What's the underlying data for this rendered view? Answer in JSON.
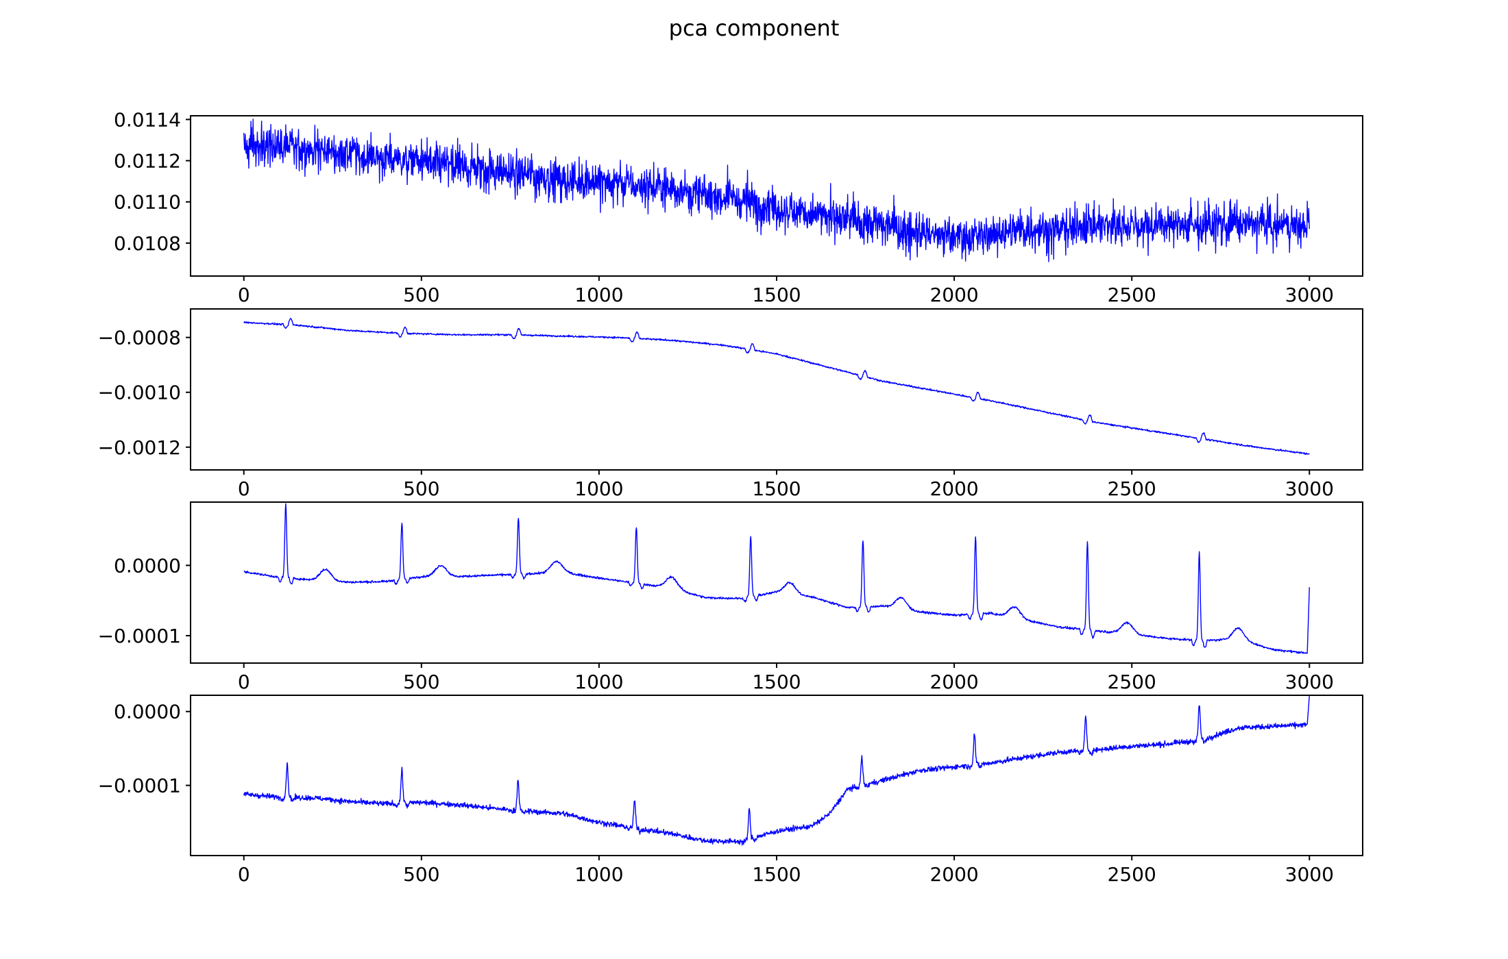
{
  "figure": {
    "title": "pca component"
  },
  "chart_data": [
    {
      "type": "line",
      "title": "",
      "xlabel": "",
      "ylabel": "",
      "xlim": [
        -150,
        3150
      ],
      "ylim": [
        0.01064,
        0.011418
      ],
      "xticks": [
        0,
        500,
        1000,
        1500,
        2000,
        2500,
        3000
      ],
      "xtick_labels": [
        "0",
        "500",
        "1000",
        "1500",
        "2000",
        "2500",
        "3000"
      ],
      "yticks": [
        0.0108,
        0.011,
        0.0112,
        0.0114
      ],
      "ytick_labels": [
        "0.0108",
        "0.0110",
        "0.0112",
        "0.0114"
      ],
      "series": [
        {
          "color": "#0000ff",
          "x": [
            0,
            100,
            200,
            300,
            400,
            500,
            600,
            700,
            800,
            900,
            1000,
            1100,
            1200,
            1300,
            1400,
            1500,
            1600,
            1700,
            1800,
            1900,
            2000,
            2100,
            2200,
            2300,
            2400,
            2500,
            2600,
            2700,
            2800,
            2900,
            3000
          ],
          "values": [
            0.01127,
            0.01127,
            0.01125,
            0.01123,
            0.01121,
            0.01119,
            0.01117,
            0.01115,
            0.01113,
            0.01111,
            0.0111,
            0.01108,
            0.01106,
            0.01104,
            0.01101,
            0.01097,
            0.01094,
            0.01091,
            0.01088,
            0.01085,
            0.01083,
            0.01084,
            0.01086,
            0.01087,
            0.01088,
            0.01089,
            0.01089,
            0.01089,
            0.01089,
            0.01089,
            0.01089
          ],
          "noise_amplitude": 0.00014
        }
      ]
    },
    {
      "type": "line",
      "title": "",
      "xlabel": "",
      "ylabel": "",
      "xlim": [
        -150,
        3150
      ],
      "ylim": [
        -0.001283,
        -0.000696
      ],
      "xticks": [
        0,
        500,
        1000,
        1500,
        2000,
        2500,
        3000
      ],
      "xtick_labels": [
        "0",
        "500",
        "1000",
        "1500",
        "2000",
        "2500",
        "3000"
      ],
      "yticks": [
        -0.0012,
        -0.001,
        -0.0008
      ],
      "ytick_labels": [
        "−0.0012",
        "−0.0010",
        "−0.0008"
      ],
      "series": [
        {
          "color": "#0000ff",
          "x": [
            0,
            150,
            300,
            450,
            600,
            750,
            900,
            1050,
            1200,
            1350,
            1500,
            1650,
            1800,
            1950,
            2100,
            2250,
            2400,
            2550,
            2700,
            2850,
            3000
          ],
          "values": [
            -0.000745,
            -0.000755,
            -0.000775,
            -0.000785,
            -0.00079,
            -0.00079,
            -0.000795,
            -0.0008,
            -0.00081,
            -0.000828,
            -0.00086,
            -0.00091,
            -0.00096,
            -0.000995,
            -0.00103,
            -0.00107,
            -0.00111,
            -0.00114,
            -0.00117,
            -0.0012,
            -0.001225
          ],
          "noise_amplitude": 3e-06,
          "beats": [
            125,
            447,
            767,
            1100,
            1425,
            1742,
            2060,
            2375,
            2695
          ],
          "beat_amplitude": 2.2e-05
        }
      ]
    },
    {
      "type": "line",
      "title": "",
      "xlabel": "",
      "ylabel": "",
      "xlim": [
        -150,
        3150
      ],
      "ylim": [
        -0.000139,
        9e-05
      ],
      "xticks": [
        0,
        500,
        1000,
        1500,
        2000,
        2500,
        3000
      ],
      "xtick_labels": [
        "0",
        "500",
        "1000",
        "1500",
        "2000",
        "2500",
        "3000"
      ],
      "yticks": [
        -0.0001,
        0
      ],
      "ytick_labels": [
        "−0.0001",
        "0.0000"
      ],
      "series": [
        {
          "color": "#0000ff",
          "x": [
            0,
            100,
            200,
            300,
            400,
            500,
            600,
            700,
            800,
            900,
            1000,
            1100,
            1200,
            1300,
            1400,
            1500,
            1600,
            1700,
            1800,
            1900,
            2000,
            2100,
            2200,
            2300,
            2400,
            2500,
            2600,
            2700,
            2800,
            2900,
            3000
          ],
          "values": [
            -9e-06,
            -1.7e-05,
            -2.1e-05,
            -2.4e-05,
            -2.3e-05,
            -1.6e-05,
            -1.6e-05,
            -1.4e-05,
            -1.2e-05,
            -1e-05,
            -1.8e-05,
            -2.5e-05,
            -3.2e-05,
            -4.6e-05,
            -4.7e-05,
            -3.8e-05,
            -4.5e-05,
            -6e-05,
            -5.8e-05,
            -6.6e-05,
            -7.1e-05,
            -6.8e-05,
            -7.8e-05,
            -8.8e-05,
            -9.3e-05,
            -9.8e-05,
            -0.000104,
            -0.000107,
            -0.000105,
            -0.00012,
            -0.000125
          ],
          "noise_amplitude": 1.5e-06,
          "beats": [
            118,
            445,
            773,
            1105,
            1427,
            1743,
            2060,
            2375,
            2690
          ],
          "beat_heights": [
            0.000105,
            8e-05,
            8e-05,
            8e-05,
            8.5e-05,
            9.5e-05,
            0.00011,
            0.000125,
            0.000125
          ],
          "twaves": [
            230,
            555,
            880,
            1205,
            1537,
            1850,
            2170,
            2487,
            2800
          ],
          "twave_amplitude": 1.6e-05,
          "end_value": -3.1e-05
        }
      ]
    },
    {
      "type": "line",
      "title": "",
      "xlabel": "",
      "ylabel": "",
      "xlim": [
        -150,
        3150
      ],
      "ylim": [
        -0.000195,
        2.2e-05
      ],
      "xticks": [
        0,
        500,
        1000,
        1500,
        2000,
        2500,
        3000
      ],
      "xtick_labels": [
        "0",
        "500",
        "1000",
        "1500",
        "2000",
        "2500",
        "3000"
      ],
      "yticks": [
        -0.0001,
        0
      ],
      "ytick_labels": [
        "−0.0001",
        "0.0000"
      ],
      "series": [
        {
          "color": "#0000ff",
          "x": [
            0,
            100,
            200,
            300,
            400,
            500,
            600,
            700,
            800,
            900,
            1000,
            1100,
            1200,
            1300,
            1400,
            1500,
            1600,
            1650,
            1700,
            1800,
            1900,
            2000,
            2100,
            2200,
            2300,
            2400,
            2500,
            2600,
            2700,
            2800,
            2900,
            2990
          ],
          "values": [
            -0.000112,
            -0.000116,
            -0.000117,
            -0.000122,
            -0.000125,
            -0.000123,
            -0.000126,
            -0.000131,
            -0.000135,
            -0.000138,
            -0.00015,
            -0.000158,
            -0.000165,
            -0.000175,
            -0.000176,
            -0.000162,
            -0.000155,
            -0.000138,
            -0.000105,
            -9.3e-05,
            -8e-05,
            -7.5e-05,
            -7e-05,
            -6.2e-05,
            -5.5e-05,
            -5.2e-05,
            -4.7e-05,
            -4.4e-05,
            -3.8e-05,
            -2.2e-05,
            -2e-05,
            -1.8e-05
          ],
          "noise_amplitude": 3.5e-06,
          "beats": [
            122,
            445,
            772,
            1100,
            1423,
            1740,
            2057,
            2370,
            2690
          ],
          "beat_heights": [
            4.5e-05,
            4.5e-05,
            4.2e-05,
            3.8e-05,
            4e-05,
            3.8e-05,
            4.2e-05,
            4.5e-05,
            4.8e-05
          ],
          "end_value": 2.2e-05
        }
      ]
    }
  ]
}
